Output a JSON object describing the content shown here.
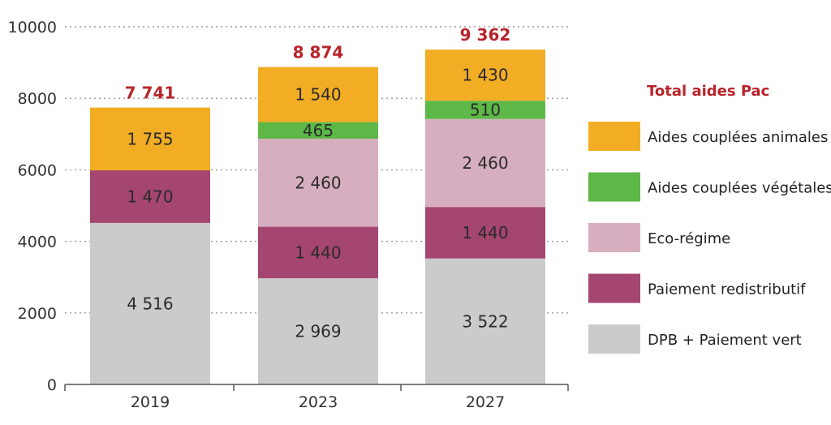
{
  "chart_data": {
    "type": "bar",
    "stacked": true,
    "categories": [
      "2019",
      "2023",
      "2027"
    ],
    "totals": [
      "7 741",
      "8 874",
      "9 362"
    ],
    "ylim": [
      0,
      10000
    ],
    "yticks": [
      0,
      2000,
      4000,
      6000,
      8000,
      10000
    ],
    "ytick_labels": [
      "0",
      "2000",
      "4000",
      "6000",
      "8000",
      "10000"
    ],
    "grid": "horizontal dotted",
    "legend_title": "Total aides Pac",
    "legend_position": "right",
    "series": [
      {
        "name": "DPB + Paiement vert",
        "color": "#cbcbcb",
        "values": [
          4516,
          2969,
          3522
        ],
        "labels": [
          "4 516",
          "2 969",
          "3 522"
        ]
      },
      {
        "name": "Paiement redistributif",
        "color": "#a4466f",
        "values": [
          1470,
          1440,
          1440
        ],
        "labels": [
          "1 470",
          "1 440",
          "1 440"
        ]
      },
      {
        "name": "Eco-régime",
        "color": "#d7aebf",
        "values": [
          0,
          2460,
          2460
        ],
        "labels": [
          "",
          "2 460",
          "2 460"
        ]
      },
      {
        "name": "Aides couplées végétales",
        "color": "#5db847",
        "values": [
          0,
          465,
          510
        ],
        "labels": [
          "",
          "465",
          "510"
        ]
      },
      {
        "name": "Aides couplées animales",
        "color": "#f2ad24",
        "values": [
          1755,
          1540,
          1430
        ],
        "labels": [
          "1 755",
          "1 540",
          "1 430"
        ]
      }
    ],
    "legend_order": [
      "Aides couplées animales",
      "Aides couplées végétales",
      "Eco-régime",
      "Paiement redistributif",
      "DPB + Paiement vert"
    ]
  }
}
